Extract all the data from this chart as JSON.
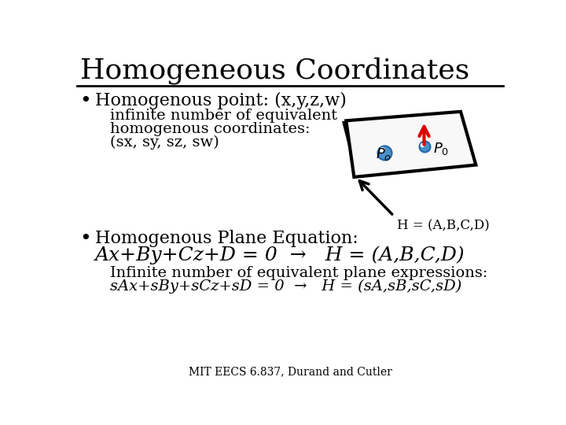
{
  "title": "Homogeneous Coordinates",
  "bg_color": "#ffffff",
  "text_color": "#000000",
  "bullet1_main": "Homogenous point: (x,y,z,w)",
  "bullet1_sub1": "infinite number of equivalent",
  "bullet1_sub2": "homogenous coordinates:",
  "bullet1_sub3": "(sx, sy, sz, sw)",
  "label_H": "H = (A,B,C,D)",
  "bullet2_main": "Homogenous Plane Equation:",
  "bullet2_eq": "Ax+By+Cz+D = 0  →   H = (A,B,C,D)",
  "bullet2_sub1": "Infinite number of equivalent plane expressions:",
  "bullet2_sub2": "sAx+sBy+sCz+sD = 0  →   H = (sA,sB,sC,sD)",
  "footer": "MIT EECS 6.837, Durand and Cutler",
  "plane_fill": "#f8f8f8",
  "plane_edge": "#000000",
  "arrow_red": "#dd0000",
  "point_fill": "#4a90c8",
  "point_edge": "#2266aa",
  "arrow_black": "#000000",
  "title_fontsize": 26,
  "bullet_main_fontsize": 16,
  "bullet_sub_fontsize": 14,
  "eq_fontsize": 18,
  "footer_fontsize": 10
}
